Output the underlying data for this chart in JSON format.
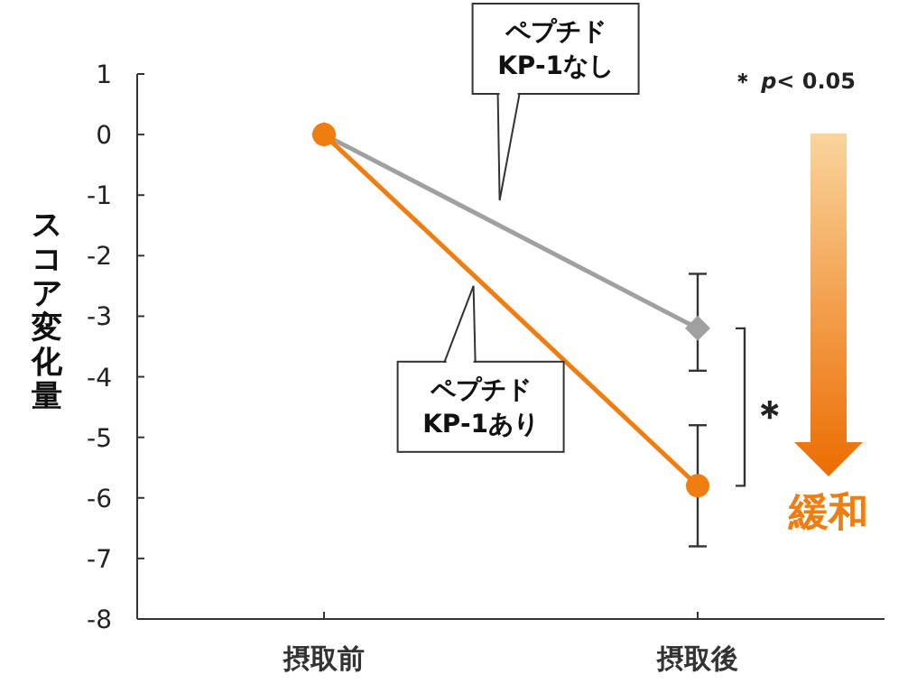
{
  "chart_data": {
    "type": "line",
    "ylabel": "スコア変化量",
    "categories": [
      "摂取前",
      "摂取後"
    ],
    "ylim": [
      -8,
      1
    ],
    "yticks": [
      -8,
      -7,
      -6,
      -5,
      -4,
      -3,
      -2,
      -1,
      0,
      1
    ],
    "grid": false,
    "series": [
      {
        "name": "ペプチド KP-1なし",
        "color": "#a0a0a0",
        "marker": "diamond",
        "values": [
          0,
          -3.2
        ],
        "errors": [
          null,
          [
            -3.9,
            -2.3
          ]
        ]
      },
      {
        "name": "ペプチド KP-1あり",
        "color": "#ef7d0f",
        "marker": "circle",
        "values": [
          0,
          -5.8
        ],
        "errors": [
          null,
          [
            -6.8,
            -4.8
          ]
        ]
      }
    ],
    "annotations": [
      "＊ *p*< 0.05",
      "＊",
      "緩和"
    ]
  }
}
